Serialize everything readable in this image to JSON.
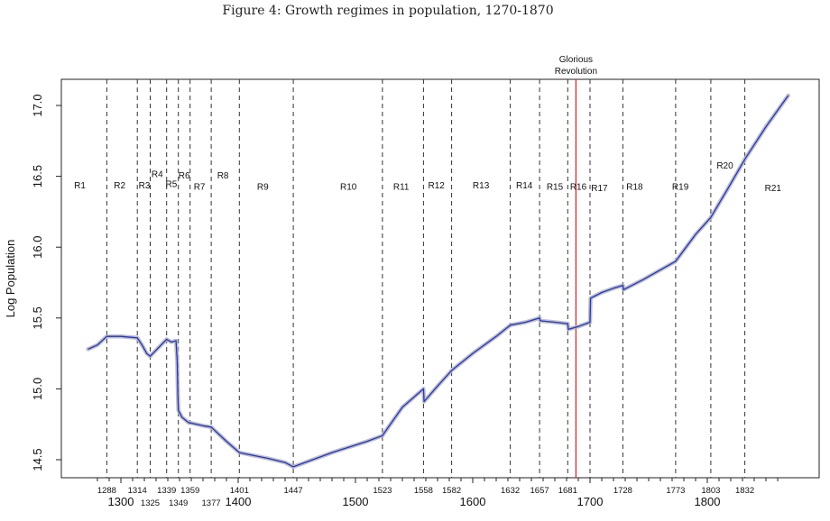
{
  "figure": {
    "title": "Figure 4: Growth regimes in population, 1270-1870"
  },
  "chart_data": {
    "type": "line",
    "title": "Figure 4: Growth regimes in population, 1270-1870",
    "xlabel": "",
    "ylabel": "Log Population",
    "xlim": [
      1270,
      1870
    ],
    "ylim": [
      14.4,
      17.1
    ],
    "x_major_ticks": [
      1300,
      1400,
      1500,
      1600,
      1700,
      1800
    ],
    "y_ticks": [
      14.5,
      15.0,
      15.5,
      16.0,
      16.5,
      17.0
    ],
    "y_tick_labels": [
      "14.5",
      "15.0",
      "15.5",
      "16.0",
      "16.5",
      "17.0"
    ],
    "breaks": [
      1288,
      1314,
      1325,
      1339,
      1349,
      1359,
      1377,
      1401,
      1447,
      1523,
      1558,
      1582,
      1632,
      1657,
      1681,
      1700,
      1728,
      1773,
      1803,
      1832
    ],
    "break_labels": [
      "1288",
      "1314",
      "1325",
      "1339",
      "1349",
      "1359",
      "1377",
      "1401",
      "1447",
      "1523",
      "1558",
      "1582",
      "1632",
      "1657",
      "1681",
      "1728",
      "1773",
      "1803",
      "1832"
    ],
    "regimes": [
      {
        "label": "R1",
        "x": 1265,
        "y": 16.44
      },
      {
        "label": "R2",
        "x": 1299,
        "y": 16.44
      },
      {
        "label": "R3",
        "x": 1320,
        "y": 16.44
      },
      {
        "label": "R4",
        "x": 1331,
        "y": 16.52
      },
      {
        "label": "R5",
        "x": 1343,
        "y": 16.45
      },
      {
        "label": "R6",
        "x": 1354,
        "y": 16.51
      },
      {
        "label": "R7",
        "x": 1367,
        "y": 16.43
      },
      {
        "label": "R8",
        "x": 1387,
        "y": 16.51
      },
      {
        "label": "R9",
        "x": 1421,
        "y": 16.43
      },
      {
        "label": "R10",
        "x": 1494,
        "y": 16.43
      },
      {
        "label": "R11",
        "x": 1539,
        "y": 16.43
      },
      {
        "label": "R12",
        "x": 1569,
        "y": 16.44
      },
      {
        "label": "R13",
        "x": 1607,
        "y": 16.44
      },
      {
        "label": "R14",
        "x": 1644,
        "y": 16.44
      },
      {
        "label": "R15",
        "x": 1670,
        "y": 16.43
      },
      {
        "label": "R16",
        "x": 1690,
        "y": 16.43
      },
      {
        "label": "R17",
        "x": 1708,
        "y": 16.42
      },
      {
        "label": "R18",
        "x": 1738,
        "y": 16.43
      },
      {
        "label": "R19",
        "x": 1777,
        "y": 16.43
      },
      {
        "label": "R20",
        "x": 1815,
        "y": 16.58
      },
      {
        "label": "R21",
        "x": 1856,
        "y": 16.42
      }
    ],
    "event": {
      "label_line1": "Glorious",
      "label_line2": "Revolution",
      "x": 1688,
      "color": "#d62020"
    },
    "series": [
      {
        "name": "",
        "color": "#2233cc",
        "smoothed_color": "#b5b5b5",
        "points": [
          [
            1272,
            15.28
          ],
          [
            1280,
            15.31
          ],
          [
            1288,
            15.37
          ],
          [
            1300,
            15.37
          ],
          [
            1314,
            15.36
          ],
          [
            1318,
            15.31
          ],
          [
            1322,
            15.25
          ],
          [
            1325,
            15.23
          ],
          [
            1339,
            15.35
          ],
          [
            1343,
            15.33
          ],
          [
            1347,
            15.34
          ],
          [
            1348,
            15.2
          ],
          [
            1348.5,
            14.98
          ],
          [
            1349,
            14.85
          ],
          [
            1352,
            14.8
          ],
          [
            1355,
            14.78
          ],
          [
            1358,
            14.76
          ],
          [
            1359,
            14.76
          ],
          [
            1370,
            14.74
          ],
          [
            1377,
            14.73
          ],
          [
            1390,
            14.63
          ],
          [
            1401,
            14.55
          ],
          [
            1425,
            14.51
          ],
          [
            1440,
            14.48
          ],
          [
            1447,
            14.45
          ],
          [
            1480,
            14.55
          ],
          [
            1510,
            14.63
          ],
          [
            1523,
            14.67
          ],
          [
            1540,
            14.87
          ],
          [
            1558,
            15.0
          ],
          [
            1558.5,
            14.91
          ],
          [
            1570,
            15.02
          ],
          [
            1582,
            15.13
          ],
          [
            1600,
            15.25
          ],
          [
            1620,
            15.37
          ],
          [
            1632,
            15.45
          ],
          [
            1645,
            15.47
          ],
          [
            1657,
            15.5
          ],
          [
            1657.5,
            15.48
          ],
          [
            1670,
            15.47
          ],
          [
            1681,
            15.46
          ],
          [
            1681.5,
            15.42
          ],
          [
            1690,
            15.44
          ],
          [
            1700,
            15.47
          ],
          [
            1700.5,
            15.64
          ],
          [
            1710,
            15.68
          ],
          [
            1720,
            15.71
          ],
          [
            1728,
            15.73
          ],
          [
            1728.5,
            15.7
          ],
          [
            1745,
            15.77
          ],
          [
            1760,
            15.84
          ],
          [
            1773,
            15.9
          ],
          [
            1790,
            16.09
          ],
          [
            1803,
            16.21
          ],
          [
            1818,
            16.42
          ],
          [
            1832,
            16.62
          ],
          [
            1850,
            16.85
          ],
          [
            1869,
            17.07
          ]
        ]
      }
    ],
    "grid": false,
    "legend": "none"
  }
}
